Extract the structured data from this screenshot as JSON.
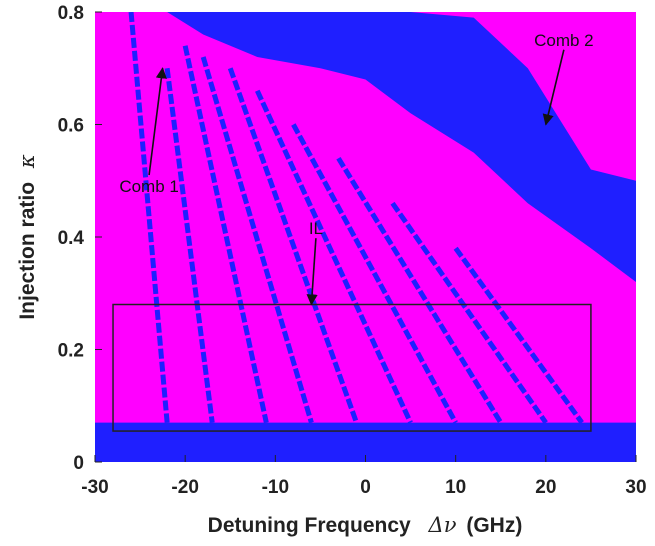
{
  "chart_data": {
    "type": "heatmap",
    "title": "",
    "xlabel": "Detuning Frequency",
    "xlabel_symbol": "Δν",
    "xlabel_unit": "(GHz)",
    "ylabel": "Injection ratio",
    "ylabel_symbol": "κ",
    "xlim": [
      -30,
      30
    ],
    "ylim": [
      0,
      0.8
    ],
    "xticks": [
      "-30",
      "-20",
      "-10",
      "0",
      "10",
      "20",
      "30"
    ],
    "yticks": [
      "0",
      "0.2",
      "0.4",
      "0.6",
      "0.8"
    ],
    "grid": false,
    "colors": {
      "background": "#ff00ff",
      "region": "#1f1fff",
      "frame": "#222222"
    },
    "dynamics_regions": [
      {
        "x": [
          -30,
          -22,
          -18,
          -12,
          -5,
          0,
          5,
          12,
          18,
          25,
          30
        ],
        "y_top": [
          0.8,
          0.8,
          0.8,
          0.8,
          0.8,
          0.8,
          0.8,
          0.79,
          0.7,
          0.52,
          0.5
        ],
        "y_bottom": [
          0.8,
          0.8,
          0.76,
          0.72,
          0.7,
          0.68,
          0.62,
          0.55,
          0.46,
          0.38,
          0.32
        ]
      }
    ],
    "lines": [
      {
        "x1": -26,
        "y1": 0.8,
        "x2": -22,
        "y2": 0.07
      },
      {
        "x1": -22,
        "y1": 0.7,
        "x2": -17,
        "y2": 0.07
      },
      {
        "x1": -20,
        "y1": 0.74,
        "x2": -11,
        "y2": 0.07
      },
      {
        "x1": -18,
        "y1": 0.72,
        "x2": -6,
        "y2": 0.07
      },
      {
        "x1": -15,
        "y1": 0.7,
        "x2": -1,
        "y2": 0.07
      },
      {
        "x1": -12,
        "y1": 0.66,
        "x2": 5,
        "y2": 0.07
      },
      {
        "x1": -8,
        "y1": 0.6,
        "x2": 10,
        "y2": 0.07
      },
      {
        "x1": -3,
        "y1": 0.54,
        "x2": 15,
        "y2": 0.07
      },
      {
        "x1": 3,
        "y1": 0.46,
        "x2": 20,
        "y2": 0.07
      },
      {
        "x1": 10,
        "y1": 0.38,
        "x2": 24,
        "y2": 0.07
      }
    ],
    "box": {
      "x": [
        -28,
        25
      ],
      "y": [
        0.055,
        0.28
      ]
    },
    "annotations": [
      {
        "text": "Comb 1",
        "text_x": -24,
        "text_y": 0.48,
        "arrow_x": -22.5,
        "arrow_y": 0.7
      },
      {
        "text": "Comb 2",
        "text_x": 22,
        "text_y": 0.74,
        "arrow_x": 20,
        "arrow_y": 0.6
      },
      {
        "text": "IL",
        "text_x": -5.5,
        "text_y": 0.405,
        "arrow_x": -6,
        "arrow_y": 0.28
      }
    ]
  }
}
